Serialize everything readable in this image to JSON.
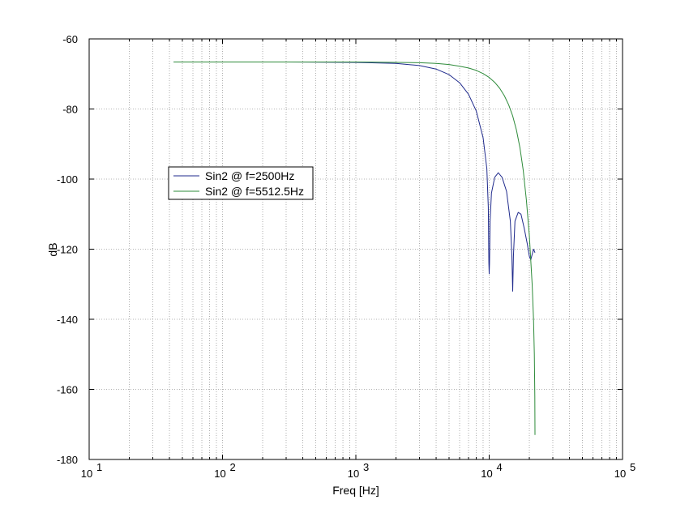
{
  "chart_data": {
    "type": "line",
    "xlabel": "Freq [Hz]",
    "ylabel": "dB",
    "xscale": "log",
    "xlim": [
      10,
      100000
    ],
    "ylim": [
      -180,
      -60
    ],
    "grid": true,
    "grid_style": "dotted",
    "legend_placement": "center-left",
    "y_ticks": [
      -60,
      -80,
      -100,
      -120,
      -140,
      -160,
      -180
    ],
    "x_ticks": [
      {
        "value": 10,
        "base": "10",
        "exp": "1"
      },
      {
        "value": 100,
        "base": "10",
        "exp": "2"
      },
      {
        "value": 1000,
        "base": "10",
        "exp": "3"
      },
      {
        "value": 10000,
        "base": "10",
        "exp": "4"
      },
      {
        "value": 100000,
        "base": "10",
        "exp": "5"
      }
    ],
    "series": [
      {
        "name": "Sin2 @ f=2500Hz",
        "color": "#1f2a8c",
        "points": [
          [
            43,
            -66.6
          ],
          [
            100,
            -66.6
          ],
          [
            300,
            -66.6
          ],
          [
            1000,
            -66.7
          ],
          [
            2000,
            -67.0
          ],
          [
            3000,
            -67.6
          ],
          [
            4000,
            -68.6
          ],
          [
            5000,
            -70.2
          ],
          [
            6000,
            -72.5
          ],
          [
            7000,
            -75.8
          ],
          [
            8000,
            -80.6
          ],
          [
            9000,
            -88.2
          ],
          [
            9600,
            -97
          ],
          [
            9850,
            -108
          ],
          [
            9950,
            -124
          ],
          [
            10000,
            -127
          ],
          [
            10050,
            -124
          ],
          [
            10150,
            -112
          ],
          [
            10400,
            -104
          ],
          [
            11000,
            -99.5
          ],
          [
            11700,
            -98.2
          ],
          [
            12500,
            -99.5
          ],
          [
            13500,
            -103.5
          ],
          [
            14400,
            -112
          ],
          [
            14800,
            -122
          ],
          [
            15000,
            -132
          ],
          [
            15200,
            -122
          ],
          [
            15600,
            -112
          ],
          [
            16500,
            -109.5
          ],
          [
            17300,
            -110
          ],
          [
            18300,
            -114
          ],
          [
            19300,
            -118.5
          ],
          [
            20000,
            -122
          ],
          [
            20500,
            -123
          ],
          [
            21000,
            -121.5
          ],
          [
            21500,
            -120
          ],
          [
            22050,
            -121
          ]
        ]
      },
      {
        "name": "Sin2 @ f=5512.5Hz",
        "color": "#2e8b3a",
        "points": [
          [
            43,
            -66.6
          ],
          [
            100,
            -66.6
          ],
          [
            300,
            -66.6
          ],
          [
            1000,
            -66.6
          ],
          [
            2000,
            -66.7
          ],
          [
            3000,
            -66.8
          ],
          [
            4000,
            -67.0
          ],
          [
            5000,
            -67.3
          ],
          [
            6000,
            -67.8
          ],
          [
            7000,
            -68.3
          ],
          [
            8000,
            -69.0
          ],
          [
            9000,
            -69.9
          ],
          [
            10000,
            -71.0
          ],
          [
            11000,
            -72.4
          ],
          [
            12000,
            -74.1
          ],
          [
            13000,
            -76.2
          ],
          [
            14000,
            -78.8
          ],
          [
            15000,
            -82.0
          ],
          [
            16000,
            -86.0
          ],
          [
            17000,
            -91.0
          ],
          [
            18000,
            -97.5
          ],
          [
            19000,
            -106
          ],
          [
            20000,
            -116
          ],
          [
            21000,
            -130
          ],
          [
            21500,
            -140
          ],
          [
            21800,
            -150
          ],
          [
            22000,
            -162
          ],
          [
            22050,
            -173
          ]
        ]
      }
    ]
  }
}
